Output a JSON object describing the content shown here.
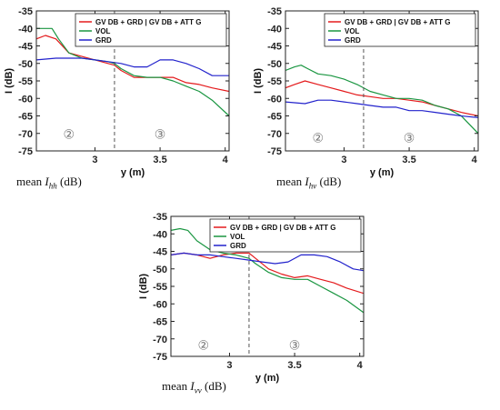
{
  "chart_data": [
    {
      "type": "line",
      "caption_prefix": "mean",
      "caption_symbol": "I",
      "caption_sub": "hh",
      "caption_unit": "(dB)",
      "xlabel": "y (m)",
      "ylabel": "I (dB)",
      "xlim": [
        2.55,
        4.03
      ],
      "ylim": [
        -75,
        -35
      ],
      "xticks": [
        3,
        3.5,
        4
      ],
      "yticks": [
        -75,
        -70,
        -65,
        -60,
        -55,
        -50,
        -45,
        -40,
        -35
      ],
      "vline_x": 3.15,
      "region_labels": [
        {
          "text": "②",
          "x": 2.8,
          "y": -71.5
        },
        {
          "text": "③",
          "x": 3.5,
          "y": -71.5
        }
      ],
      "legend_position": "top-right",
      "series": [
        {
          "name": "GV DB + GRD | GV DB + ATT G",
          "color": "#e41a1c",
          "x": [
            2.55,
            2.62,
            2.7,
            2.8,
            2.9,
            3.0,
            3.1,
            3.15,
            3.2,
            3.3,
            3.4,
            3.5,
            3.6,
            3.7,
            3.8,
            3.9,
            4.03
          ],
          "y": [
            -43,
            -42,
            -43,
            -47,
            -48,
            -49,
            -50,
            -50.5,
            -52,
            -54,
            -54,
            -54,
            -54,
            -55.5,
            -56,
            -57,
            -58
          ]
        },
        {
          "name": "VOL",
          "color": "#1a9641",
          "x": [
            2.55,
            2.6,
            2.67,
            2.72,
            2.8,
            2.9,
            3.0,
            3.1,
            3.15,
            3.2,
            3.3,
            3.4,
            3.5,
            3.6,
            3.7,
            3.8,
            3.9,
            4.03
          ],
          "y": [
            -40,
            -40,
            -40,
            -43,
            -47,
            -48.5,
            -49,
            -49.5,
            -50,
            -51.5,
            -53.5,
            -54,
            -54,
            -55,
            -56.5,
            -58,
            -60.5,
            -65
          ]
        },
        {
          "name": "GRD",
          "color": "#2222cc",
          "x": [
            2.55,
            2.7,
            2.9,
            3.0,
            3.1,
            3.2,
            3.3,
            3.4,
            3.5,
            3.6,
            3.7,
            3.8,
            3.9,
            4.03
          ],
          "y": [
            -49,
            -48.5,
            -48.5,
            -49,
            -49.5,
            -50,
            -51,
            -51,
            -49,
            -49,
            -50,
            -51.5,
            -53.5,
            -53.5
          ]
        }
      ]
    },
    {
      "type": "line",
      "caption_prefix": "mean",
      "caption_symbol": "I",
      "caption_sub": "hv",
      "caption_unit": "(dB)",
      "xlabel": "y (m)",
      "ylabel": "I (dB)",
      "xlim": [
        2.55,
        4.03
      ],
      "ylim": [
        -75,
        -35
      ],
      "xticks": [
        3,
        3.5,
        4
      ],
      "yticks": [
        -75,
        -70,
        -65,
        -60,
        -55,
        -50,
        -45,
        -40,
        -35
      ],
      "vline_x": 3.15,
      "region_labels": [
        {
          "text": "②",
          "x": 2.8,
          "y": -72.5
        },
        {
          "text": "③",
          "x": 3.5,
          "y": -72.5
        }
      ],
      "legend_position": "top-right",
      "series": [
        {
          "name": "GV DB + GRD | GV DB + ATT G",
          "color": "#e41a1c",
          "x": [
            2.55,
            2.62,
            2.7,
            2.8,
            2.9,
            3.0,
            3.1,
            3.2,
            3.3,
            3.4,
            3.5,
            3.6,
            3.7,
            3.8,
            3.9,
            4.03
          ],
          "y": [
            -57,
            -56,
            -55,
            -56,
            -57,
            -58,
            -59,
            -59.5,
            -60,
            -60,
            -60.5,
            -61,
            -62,
            -63,
            -64,
            -65
          ]
        },
        {
          "name": "VOL",
          "color": "#1a9641",
          "x": [
            2.55,
            2.62,
            2.67,
            2.72,
            2.8,
            2.9,
            3.0,
            3.1,
            3.2,
            3.3,
            3.4,
            3.5,
            3.6,
            3.7,
            3.8,
            3.9,
            4.03
          ],
          "y": [
            -52,
            -51,
            -50.5,
            -51.5,
            -53,
            -53.5,
            -54.5,
            -56,
            -58,
            -59,
            -60,
            -60,
            -60.5,
            -62,
            -63,
            -65,
            -70
          ]
        },
        {
          "name": "GRD",
          "color": "#2222cc",
          "x": [
            2.55,
            2.7,
            2.8,
            2.9,
            3.0,
            3.1,
            3.2,
            3.3,
            3.4,
            3.5,
            3.6,
            3.7,
            3.8,
            3.9,
            4.03
          ],
          "y": [
            -61,
            -61.5,
            -60.5,
            -60.5,
            -61,
            -61.5,
            -62,
            -62.5,
            -62.5,
            -63.5,
            -63.5,
            -64,
            -64.5,
            -65,
            -65.5
          ]
        }
      ]
    },
    {
      "type": "line",
      "caption_prefix": "mean",
      "caption_symbol": "I",
      "caption_sub": "vv",
      "caption_unit": "(dB)",
      "xlabel": "y (m)",
      "ylabel": "I (dB)",
      "xlim": [
        2.55,
        4.03
      ],
      "ylim": [
        -75,
        -35
      ],
      "xticks": [
        3,
        3.5,
        4
      ],
      "yticks": [
        -75,
        -70,
        -65,
        -60,
        -55,
        -50,
        -45,
        -40,
        -35
      ],
      "vline_x": 3.15,
      "region_labels": [
        {
          "text": "②",
          "x": 2.8,
          "y": -73
        },
        {
          "text": "③",
          "x": 3.5,
          "y": -73
        }
      ],
      "legend_position": "top-right",
      "series": [
        {
          "name": "GV DB + GRD | GV DB + ATT G",
          "color": "#e41a1c",
          "x": [
            2.55,
            2.65,
            2.75,
            2.85,
            2.95,
            3.05,
            3.15,
            3.2,
            3.3,
            3.4,
            3.5,
            3.6,
            3.7,
            3.8,
            3.9,
            4.03
          ],
          "y": [
            -46,
            -45.5,
            -46,
            -47,
            -46,
            -45.5,
            -45.5,
            -47,
            -50,
            -51.5,
            -52.5,
            -52,
            -53,
            -54,
            -55.5,
            -57
          ]
        },
        {
          "name": "VOL",
          "color": "#1a9641",
          "x": [
            2.55,
            2.62,
            2.68,
            2.75,
            2.85,
            2.95,
            3.05,
            3.15,
            3.2,
            3.3,
            3.4,
            3.5,
            3.6,
            3.7,
            3.8,
            3.9,
            4.03
          ],
          "y": [
            -39,
            -38.5,
            -39,
            -42,
            -44.5,
            -45.5,
            -46,
            -47,
            -48.5,
            -51,
            -52.5,
            -53,
            -53,
            -55,
            -57,
            -59,
            -62.5
          ]
        },
        {
          "name": "GRD",
          "color": "#2222cc",
          "x": [
            2.55,
            2.65,
            2.75,
            2.85,
            2.95,
            3.05,
            3.15,
            3.25,
            3.35,
            3.45,
            3.55,
            3.65,
            3.75,
            3.85,
            3.95,
            4.03
          ],
          "y": [
            -46,
            -45.5,
            -46,
            -46,
            -46.5,
            -47,
            -47.5,
            -48,
            -48.5,
            -48,
            -46,
            -46,
            -46.5,
            -48,
            -50,
            -50.5
          ]
        }
      ]
    }
  ]
}
